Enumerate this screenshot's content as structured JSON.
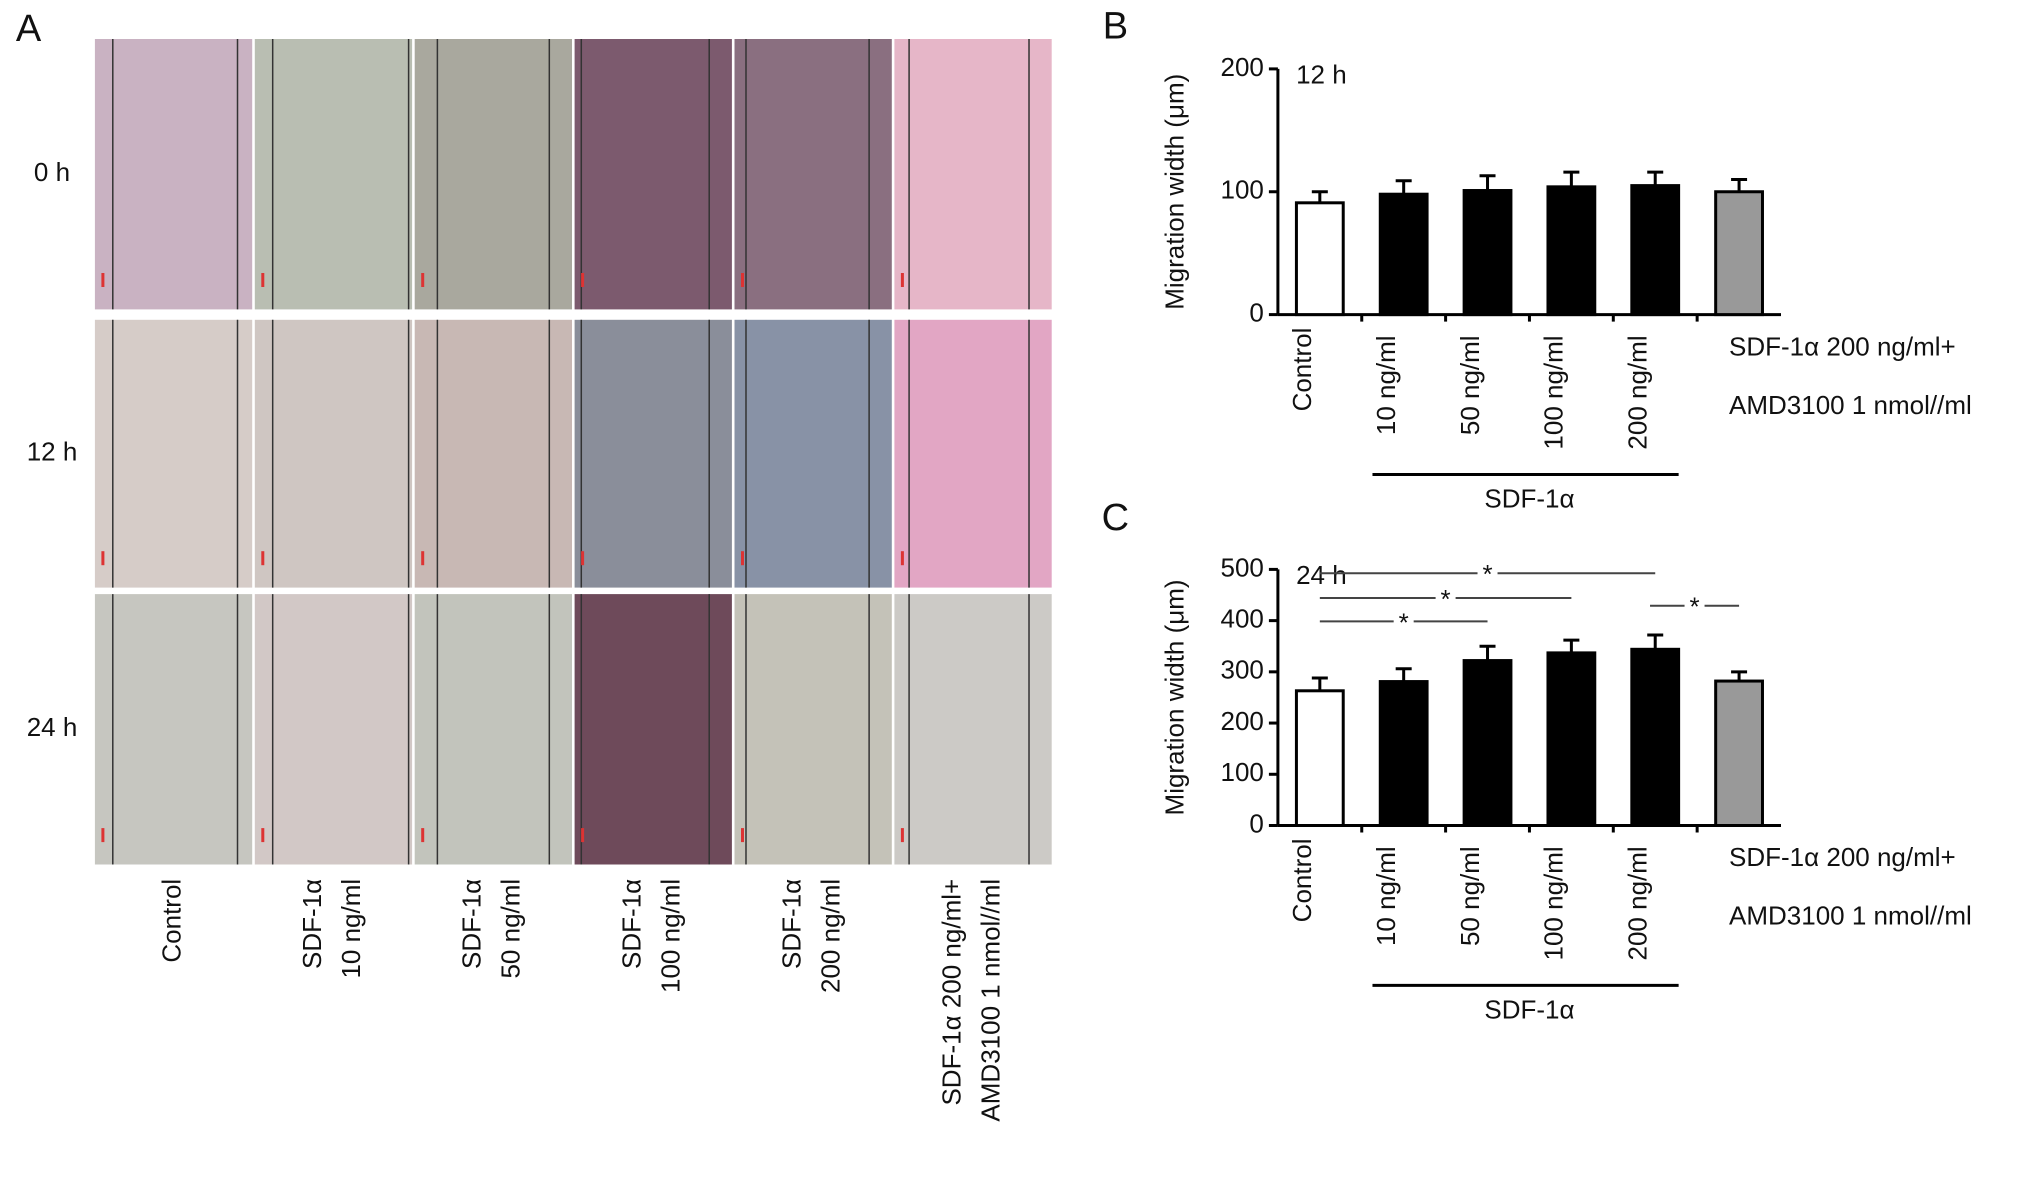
{
  "panel_a": {
    "label": "A",
    "rows": [
      "0 h",
      "12 h",
      "24 h"
    ],
    "columns": [
      [
        "Control"
      ],
      [
        "SDF-1α",
        "10 ng/ml"
      ],
      [
        "SDF-1α",
        "50 ng/ml"
      ],
      [
        "SDF-1α",
        "100 ng/ml"
      ],
      [
        "SDF-1α",
        "200 ng/ml"
      ],
      [
        "SDF-1α 200 ng/ml+",
        "AMD3100 1 nmol//ml"
      ]
    ]
  },
  "chart_data": [
    {
      "type": "bar",
      "panel": "B",
      "annotation": "12 h",
      "ylabel": "Migration width (μm)",
      "categories": [
        [
          "Control"
        ],
        [
          "10 ng/ml"
        ],
        [
          "50 ng/ml"
        ],
        [
          "100 ng/ml"
        ],
        [
          "200 ng/ml"
        ],
        [
          "SDF-1α 200 ng/ml+",
          "AMD3100 1 nmol//ml"
        ]
      ],
      "values": [
        91,
        98,
        101,
        104,
        105,
        100
      ],
      "errors": [
        9,
        11,
        12,
        12,
        11,
        10
      ],
      "colors": [
        "#ffffff",
        "#000000",
        "#000000",
        "#000000",
        "#000000",
        "#999999"
      ],
      "group": {
        "label": "SDF-1α",
        "from": 1,
        "to": 4
      },
      "ylim": [
        0,
        200
      ],
      "yticks": [
        0,
        100,
        200
      ]
    },
    {
      "type": "bar",
      "panel": "C",
      "annotation": "24 h",
      "ylabel": "Migration width (μm)",
      "categories": [
        [
          "Control"
        ],
        [
          "10 ng/ml"
        ],
        [
          "50 ng/ml"
        ],
        [
          "100 ng/ml"
        ],
        [
          "200 ng/ml"
        ],
        [
          "SDF-1α 200 ng/ml+",
          "AMD3100 1 nmol//ml"
        ]
      ],
      "values": [
        263,
        281,
        322,
        337,
        344,
        282
      ],
      "errors": [
        25,
        25,
        28,
        25,
        28,
        18
      ],
      "colors": [
        "#ffffff",
        "#000000",
        "#000000",
        "#000000",
        "#000000",
        "#999999"
      ],
      "group": {
        "label": "SDF-1α",
        "from": 1,
        "to": 4
      },
      "significance": [
        {
          "from": 0,
          "to": 4,
          "label": "*"
        },
        {
          "from": 0,
          "to": 3,
          "label": "*"
        },
        {
          "from": 0,
          "to": 2,
          "label": "*"
        },
        {
          "from": 4,
          "to": 5,
          "label": "*"
        }
      ],
      "ylim": [
        0,
        500
      ],
      "yticks": [
        0,
        100,
        200,
        300,
        400,
        500
      ]
    }
  ]
}
